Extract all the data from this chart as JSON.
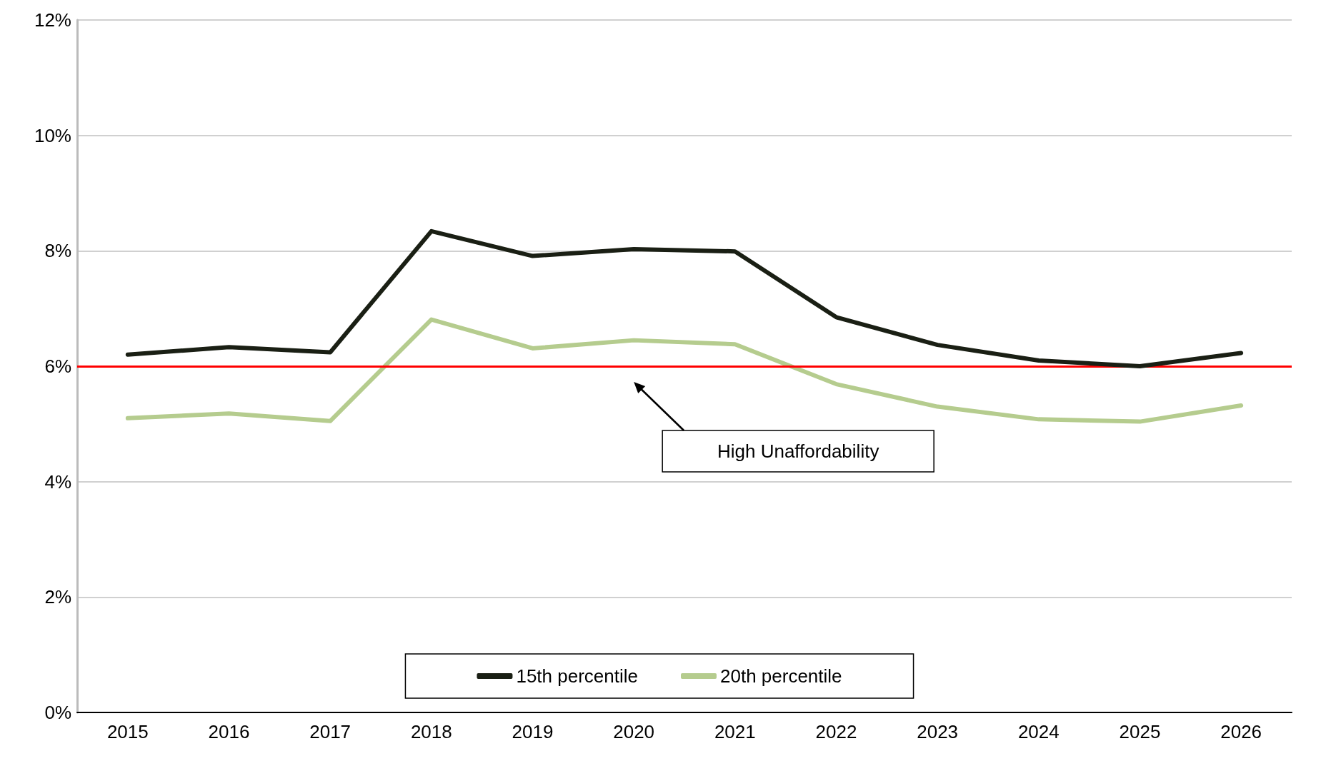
{
  "chart_data": {
    "type": "line",
    "categories": [
      "2015",
      "2016",
      "2017",
      "2018",
      "2019",
      "2020",
      "2021",
      "2022",
      "2023",
      "2024",
      "2025",
      "2026"
    ],
    "series": [
      {
        "name": "15th percentile",
        "color": "#1a1f14",
        "values": [
          6.2,
          6.33,
          6.24,
          8.34,
          7.91,
          8.03,
          7.99,
          6.85,
          6.37,
          6.1,
          6.0,
          6.23
        ]
      },
      {
        "name": "20th percentile",
        "color": "#b5cc8e",
        "values": [
          5.1,
          5.18,
          5.05,
          6.81,
          6.31,
          6.45,
          6.38,
          5.69,
          5.3,
          5.08,
          5.04,
          5.32
        ]
      }
    ],
    "ylim": [
      0,
      12
    ],
    "yticks": [
      {
        "value": 0,
        "label": "0%"
      },
      {
        "value": 2,
        "label": "2%"
      },
      {
        "value": 4,
        "label": "4%"
      },
      {
        "value": 6,
        "label": "6%"
      },
      {
        "value": 8,
        "label": "8%"
      },
      {
        "value": 10,
        "label": "10%"
      },
      {
        "value": 12,
        "label": "12%"
      }
    ],
    "ref_lines": [
      {
        "axis": "y",
        "value": 6,
        "color": "#ff0000"
      }
    ],
    "annotations": [
      "High Unaffordability"
    ],
    "grid": "y",
    "legend": "bottom",
    "marker": "none",
    "line_style": "solid"
  }
}
